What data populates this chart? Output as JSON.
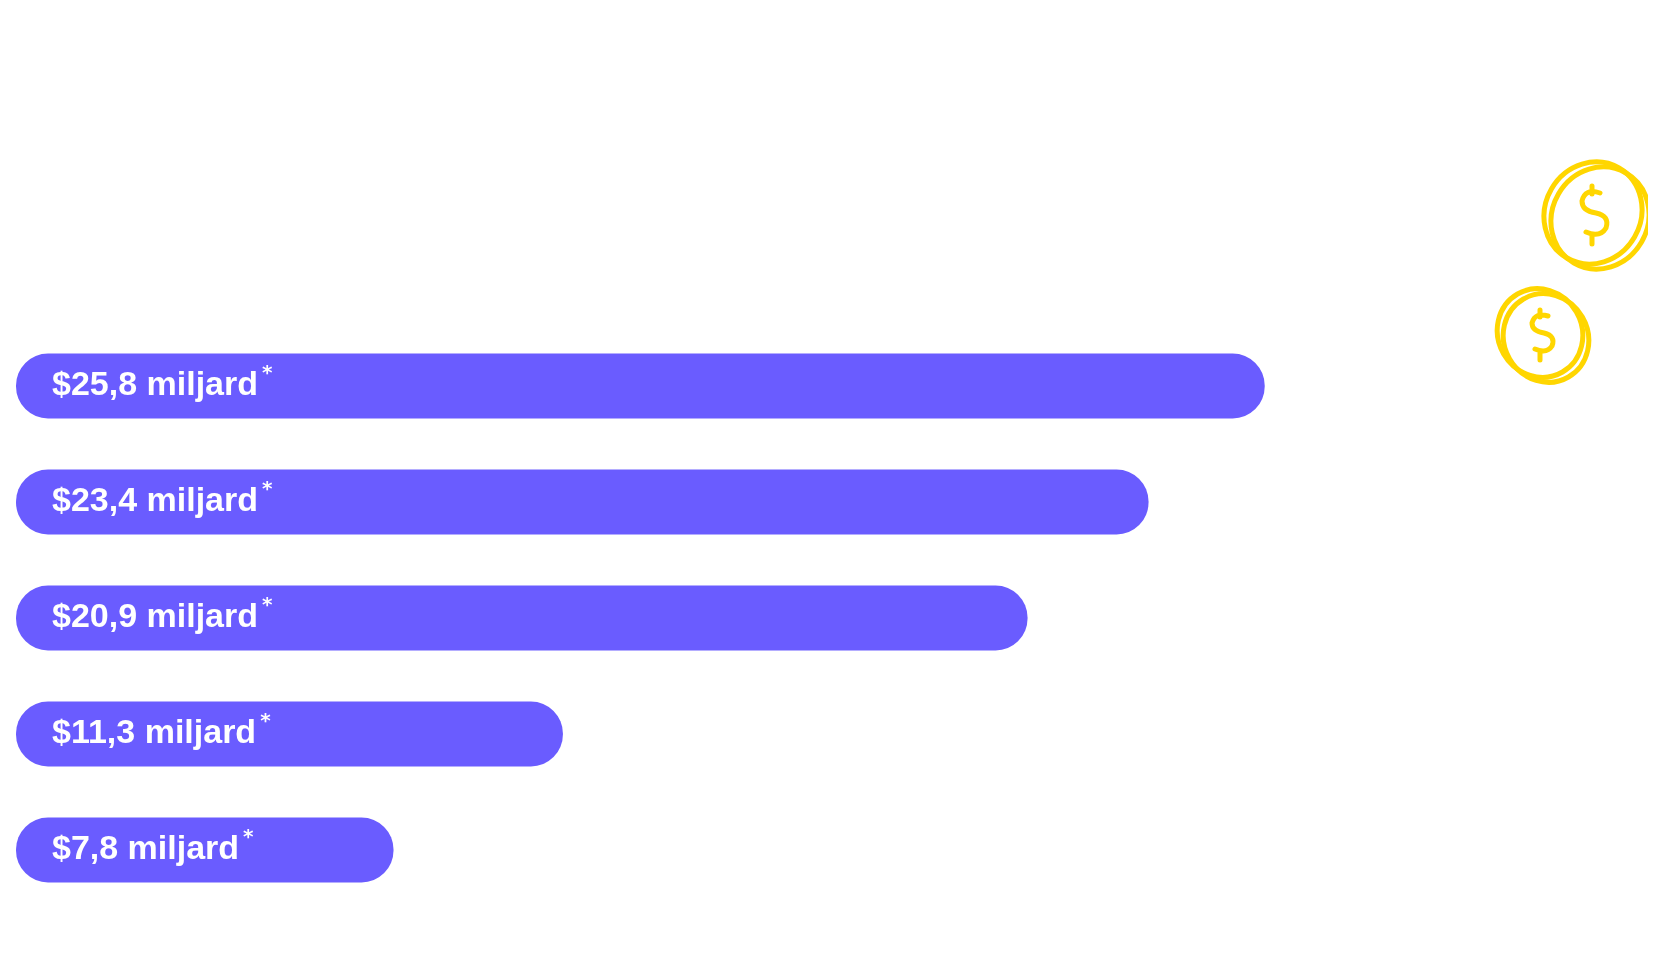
{
  "chart_data": {
    "type": "bar",
    "orientation": "horizontal",
    "categories": [
      null,
      null,
      null,
      null,
      null
    ],
    "values": [
      25.8,
      23.4,
      20.9,
      11.3,
      7.8
    ],
    "value_labels": [
      "$25,8 miljard$^{*}$",
      "$23,4 miljard$^{*}$",
      "$20,9 miljard$^{*}$",
      "$11,3 miljard$^{*}$",
      "$7,8 miljard$^{*}$"
    ],
    "color": "#6a5cff"
  }
}
